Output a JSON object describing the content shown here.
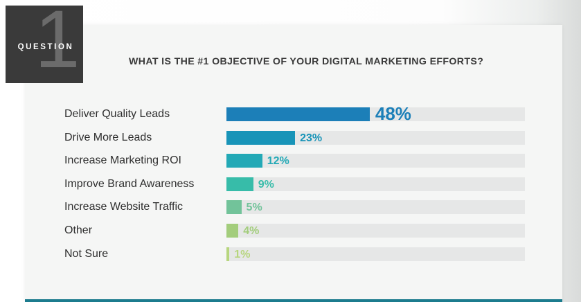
{
  "badge": {
    "number": "1",
    "label": "QUESTION"
  },
  "question": "WHAT IS THE #1 OBJECTIVE OF YOUR DIGITAL MARKETING EFFORTS?",
  "colors": {
    "badge_bg": "#3a3a3a",
    "track": "#e6e7e7",
    "bottom_line": "#1c7c8e"
  },
  "chart_data": {
    "type": "bar",
    "orientation": "horizontal",
    "title": "WHAT IS THE #1 OBJECTIVE OF YOUR DIGITAL MARKETING EFFORTS?",
    "categories": [
      "Deliver Quality Leads",
      "Drive More Leads",
      "Increase Marketing ROI",
      "Improve Brand Awareness",
      "Increase Website Traffic",
      "Other",
      "Not Sure"
    ],
    "values": [
      48,
      23,
      12,
      9,
      5,
      4,
      1
    ],
    "value_labels": [
      "48%",
      "23%",
      "12%",
      "9%",
      "5%",
      "4%",
      "1%"
    ],
    "bar_colors": [
      "#1c7fb8",
      "#1894b8",
      "#23a9b6",
      "#37bca9",
      "#72c39a",
      "#a3cd7c",
      "#b7d67e"
    ],
    "label_colors": [
      "#1c7fb8",
      "#1894b8",
      "#23a9b6",
      "#37bca9",
      "#72c39a",
      "#a3cd7c",
      "#b7d67e"
    ],
    "xlim": [
      0,
      100
    ],
    "grid": false,
    "legend": "none"
  }
}
